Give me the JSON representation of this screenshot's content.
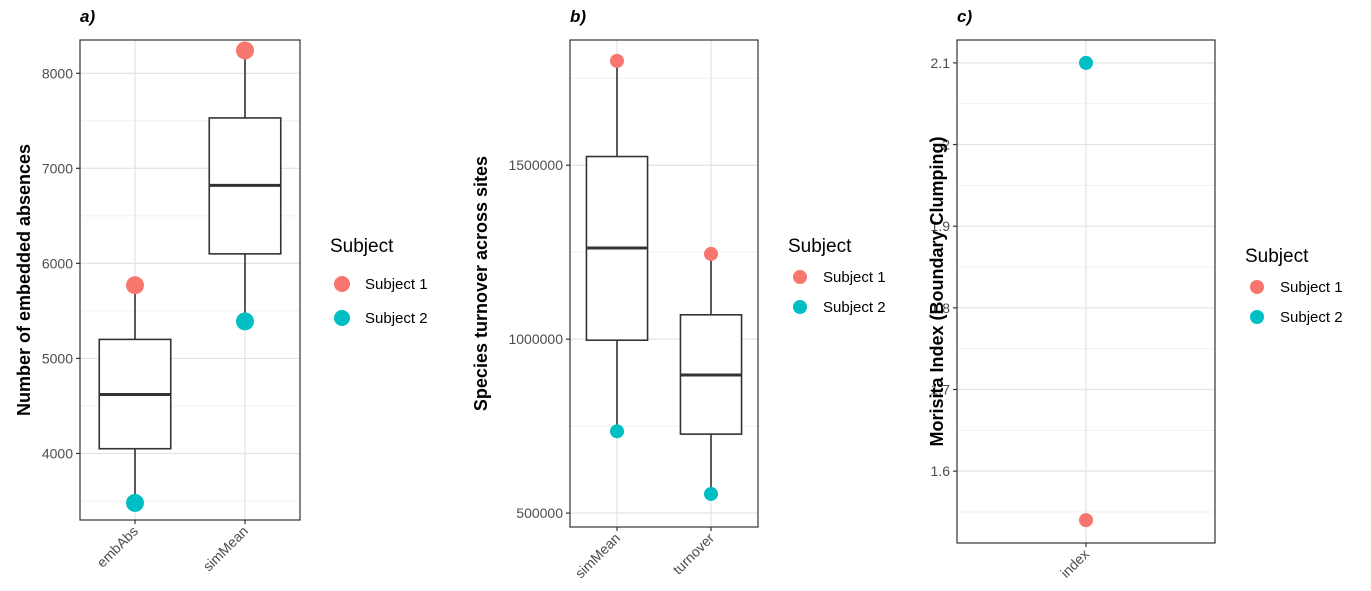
{
  "chart_data": [
    {
      "type": "boxplot",
      "panel_tag": "a)",
      "ylabel": "Number of embedded absences",
      "categories": [
        "embAbs",
        "simMean"
      ],
      "ylim": [
        3300,
        8350
      ],
      "yticks": [
        4000,
        5000,
        6000,
        7000,
        8000
      ],
      "grid": true,
      "boxes": [
        {
          "category": "embAbs",
          "q1": 4050,
          "median": 4620,
          "q3": 5200,
          "whisker_low": 3480,
          "whisker_high": 5770
        },
        {
          "category": "simMean",
          "q1": 6100,
          "median": 6820,
          "q3": 7530,
          "whisker_low": 5390,
          "whisker_high": 8240
        }
      ],
      "series": [
        {
          "name": "Subject 1",
          "points": [
            {
              "x": "embAbs",
              "y": 5770
            },
            {
              "x": "simMean",
              "y": 8240
            }
          ]
        },
        {
          "name": "Subject 2",
          "points": [
            {
              "x": "embAbs",
              "y": 3480
            },
            {
              "x": "simMean",
              "y": 5390
            }
          ]
        }
      ]
    },
    {
      "type": "boxplot",
      "panel_tag": "b)",
      "ylabel": "Species turnover across sites",
      "categories": [
        "simMean",
        "turnover"
      ],
      "ylim": [
        460000,
        1860000
      ],
      "yticks": [
        500000,
        1000000,
        1500000
      ],
      "grid": true,
      "boxes": [
        {
          "category": "simMean",
          "q1": 997000,
          "median": 1262000,
          "q3": 1525000,
          "whisker_low": 735000,
          "whisker_high": 1800000
        },
        {
          "category": "turnover",
          "q1": 727000,
          "median": 897000,
          "q3": 1070000,
          "whisker_low": 555000,
          "whisker_high": 1245000
        }
      ],
      "series": [
        {
          "name": "Subject 1",
          "points": [
            {
              "x": "simMean",
              "y": 1800000
            },
            {
              "x": "turnover",
              "y": 1245000
            }
          ]
        },
        {
          "name": "Subject 2",
          "points": [
            {
              "x": "simMean",
              "y": 735000
            },
            {
              "x": "turnover",
              "y": 555000
            }
          ]
        }
      ]
    },
    {
      "type": "scatter",
      "panel_tag": "c)",
      "ylabel": "Morisita Index (Boundary Clumping)",
      "categories": [
        "index"
      ],
      "ylim": [
        1.512,
        2.128
      ],
      "yticks": [
        1.6,
        1.7,
        1.8,
        1.9,
        2.0,
        2.1
      ],
      "grid": true,
      "series": [
        {
          "name": "Subject 1",
          "points": [
            {
              "x": "index",
              "y": 1.54
            }
          ]
        },
        {
          "name": "Subject 2",
          "points": [
            {
              "x": "index",
              "y": 2.1
            }
          ]
        }
      ]
    }
  ],
  "legend": {
    "title": "Subject",
    "position": "right",
    "entries": [
      {
        "label": "Subject 1",
        "color": "#f8766d"
      },
      {
        "label": "Subject 2",
        "color": "#00bfc4"
      }
    ]
  }
}
